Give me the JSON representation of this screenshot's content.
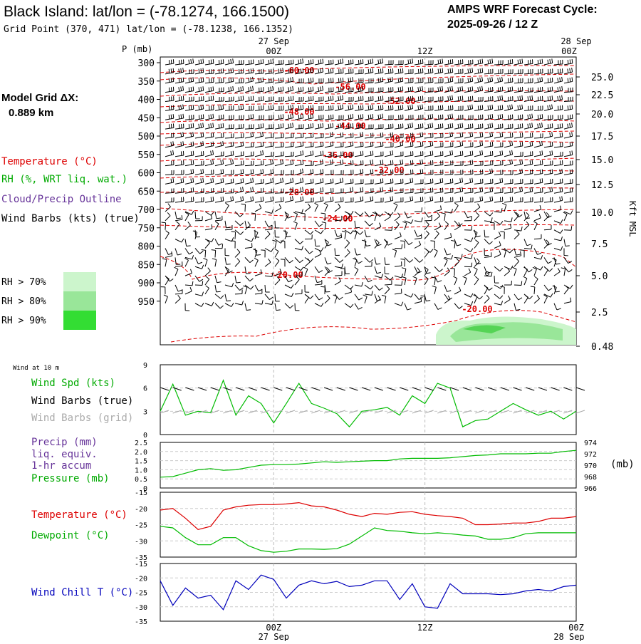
{
  "header": {
    "title": "Black Island:  lat/lon = (-78.1274, 166.1500)",
    "subtitle": "Grid Point (370, 471) lat/lon = (-78.1238, 166.1352)",
    "cycle_line1": "AMPS WRF Forecast Cycle:",
    "cycle_line2": "2025-09-26 / 12  Z"
  },
  "left_legend": {
    "model_grid_label": "Model Grid ΔX:",
    "model_grid_value": "0.889 km",
    "temperature": "Temperature (°C)",
    "rh": "RH (%, WRT liq. wat.)",
    "cloud": "Cloud/Precip Outline",
    "wind": "Wind Barbs (kts) (true)",
    "rh70": "RH > 70%",
    "rh80": "RH > 80%",
    "rh90": "RH > 90%"
  },
  "colors": {
    "temperature": "#dd0000",
    "rh_green": "#00aa00",
    "cloud": "#663399",
    "dewpoint": "#00bb00",
    "windchill": "#0000bb",
    "rh70": "#ccf5cc",
    "rh80": "#99e699",
    "rh90": "#33dd33"
  },
  "time_axis": {
    "top_labels": [
      {
        "line1": "27 Sep",
        "line2": "00Z"
      },
      {
        "line1": "",
        "line2": "12Z"
      },
      {
        "line1": "28 Sep",
        "line2": "00Z"
      }
    ],
    "bottom_labels": [
      {
        "line1": "00Z",
        "line2": "27 Sep"
      },
      {
        "line1": "12Z",
        "line2": ""
      },
      {
        "line1": "00Z",
        "line2": "28 Sep"
      }
    ]
  },
  "chart_data": [
    {
      "type": "heatmap",
      "name": "vertical cross-section",
      "y_title": "P (mb)",
      "pressure_ticks": [
        300,
        350,
        400,
        450,
        500,
        550,
        600,
        650,
        700,
        750,
        800,
        850,
        900,
        950
      ],
      "right_axis_title": "Kft MSL",
      "right_ticks": [
        "25.0",
        "22.5",
        "20.0",
        "17.5",
        "15.0",
        "12.5",
        "10.0",
        "7.5",
        "5.0",
        "2.5",
        "0.48"
      ],
      "x_range_hours": [
        -9,
        24
      ],
      "temperature_labels": [
        "-60.00",
        "-56.00",
        "-52.00",
        "-48.00",
        "-44.00",
        "-40.00",
        "-36.00",
        "-32.00",
        "-28.00",
        "-24.00",
        "-20.00",
        "-20.00"
      ]
    },
    {
      "type": "line",
      "name": "wind at 10 m",
      "label": "Wind at 10 m",
      "legend": [
        "Wind Spd (kts)",
        "Wind Barbs (true)",
        "Wind Barbs (grid)"
      ],
      "ylim": [
        0,
        9
      ],
      "yticks": [
        "9",
        "6",
        "3",
        "0"
      ],
      "series": [
        {
          "name": "Wind Spd (kts)",
          "x": [
            -9,
            -8,
            -7,
            -6,
            -5,
            -4,
            -3,
            -2,
            -1,
            0,
            1,
            2,
            3,
            4,
            5,
            6,
            7,
            8,
            9,
            10,
            11,
            12,
            13,
            14,
            15,
            16,
            17,
            18,
            19,
            20,
            21,
            22,
            23,
            24
          ],
          "values": [
            3,
            6.5,
            2.5,
            3,
            2.8,
            7,
            2.5,
            5,
            4,
            1.5,
            4,
            6.6,
            4,
            3.4,
            2.7,
            1,
            3,
            3.2,
            3.5,
            2.5,
            5,
            4,
            6.6,
            6,
            1,
            1.8,
            2,
            3,
            4,
            3.2,
            2.5,
            3,
            2,
            3
          ]
        }
      ]
    },
    {
      "type": "line",
      "name": "precip and pressure",
      "legend": [
        "Precip (mm)",
        "liq. equiv.",
        "1-hr accum",
        "Pressure (mb)"
      ],
      "ylim": [
        0,
        2.5
      ],
      "yticks": [
        "2.5",
        "2.0",
        "1.5",
        "1.0",
        "0.5",
        "0"
      ],
      "right_ticks": [
        "974",
        "972",
        "970",
        "968",
        "966"
      ],
      "right_unit": "(mb)",
      "series": [
        {
          "name": "Pressure (mb)",
          "x": [
            -9,
            -8,
            -7,
            -6,
            -5,
            -4,
            -3,
            -2,
            -1,
            0,
            1,
            2,
            3,
            4,
            5,
            6,
            7,
            8,
            9,
            10,
            11,
            12,
            13,
            14,
            15,
            16,
            17,
            18,
            19,
            20,
            21,
            22,
            23,
            24
          ],
          "values": [
            967.9,
            968,
            968.6,
            969.2,
            969.4,
            969.1,
            969.2,
            969.6,
            970,
            970.1,
            970.1,
            970.2,
            970.4,
            970.6,
            970.5,
            970.6,
            970.7,
            970.8,
            970.8,
            971.1,
            971.2,
            971.2,
            971.2,
            971.3,
            971.5,
            971.7,
            971.8,
            972,
            972,
            972,
            972.1,
            972.1,
            972.4,
            972.6
          ]
        }
      ]
    },
    {
      "type": "line",
      "name": "temperature and dewpoint",
      "legend": [
        "Temperature (°C)",
        "Dewpoint (°C)"
      ],
      "ylim": [
        -35,
        -15
      ],
      "yticks": [
        "-15",
        "-20",
        "-25",
        "-30",
        "-35"
      ],
      "series": [
        {
          "name": "Temperature (°C)",
          "x": [
            -9,
            -8,
            -7,
            -6,
            -5,
            -4,
            -3,
            -2,
            -1,
            0,
            1,
            2,
            3,
            4,
            5,
            6,
            7,
            8,
            9,
            10,
            11,
            12,
            13,
            14,
            15,
            16,
            17,
            18,
            19,
            20,
            21,
            22,
            23,
            24
          ],
          "values": [
            -20.5,
            -20,
            -23,
            -26.5,
            -25.5,
            -20.5,
            -19.5,
            -19,
            -18.8,
            -18.8,
            -18.6,
            -18.2,
            -19.2,
            -19.5,
            -20.5,
            -21.8,
            -22.5,
            -21.5,
            -21.8,
            -21.2,
            -21,
            -21.8,
            -22.2,
            -22.5,
            -23,
            -25,
            -25,
            -24.8,
            -24.5,
            -24.5,
            -24,
            -23,
            -23,
            -22.5
          ]
        },
        {
          "name": "Dewpoint (°C)",
          "x": [
            -9,
            -8,
            -7,
            -6,
            -5,
            -4,
            -3,
            -2,
            -1,
            0,
            1,
            2,
            3,
            4,
            5,
            6,
            7,
            8,
            9,
            10,
            11,
            12,
            13,
            14,
            15,
            16,
            17,
            18,
            19,
            20,
            21,
            22,
            23,
            24
          ],
          "values": [
            -25.5,
            -26,
            -29,
            -31.2,
            -31.2,
            -29,
            -29,
            -31.5,
            -33,
            -33.5,
            -33.2,
            -32.5,
            -32.5,
            -32.6,
            -32.4,
            -31,
            -28.5,
            -26,
            -26.8,
            -27,
            -27.5,
            -27.8,
            -27.5,
            -27.8,
            -28.2,
            -28.5,
            -29.5,
            -29.5,
            -29,
            -27.8,
            -27.5,
            -27.5,
            -27.5,
            -27.5
          ]
        }
      ]
    },
    {
      "type": "line",
      "name": "wind chill",
      "legend": [
        "Wind Chill T (°C)"
      ],
      "ylim": [
        -35,
        -15
      ],
      "yticks": [
        "-15",
        "-20",
        "-25",
        "-30",
        "-35"
      ],
      "series": [
        {
          "name": "Wind Chill T (°C)",
          "x": [
            -9,
            -8,
            -7,
            -6,
            -5,
            -4,
            -3,
            -2,
            -1,
            0,
            1,
            2,
            3,
            4,
            5,
            6,
            7,
            8,
            9,
            10,
            11,
            12,
            13,
            14,
            15,
            16,
            17,
            18,
            19,
            20,
            21,
            22,
            23,
            24
          ],
          "values": [
            -21,
            -29.5,
            -23.5,
            -27,
            -26,
            -31,
            -21,
            -24,
            -19,
            -20.5,
            -27,
            -22.5,
            -21,
            -22,
            -21.2,
            -23,
            -22.5,
            -21,
            -21,
            -27.5,
            -22,
            -30,
            -30.5,
            -22,
            -25.5,
            -25.5,
            -25.5,
            -25.8,
            -25.5,
            -24.5,
            -24,
            -24.5,
            -23,
            -22.5
          ]
        }
      ]
    }
  ]
}
